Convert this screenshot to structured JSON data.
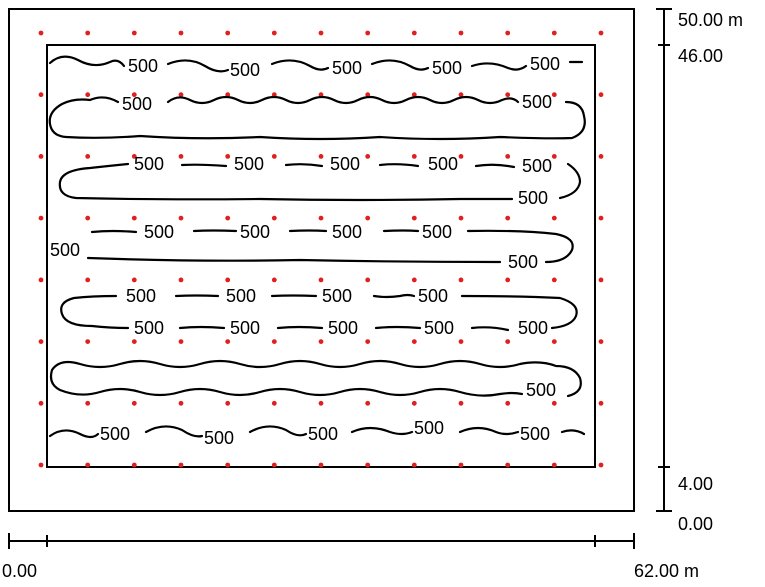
{
  "outer_boundary": {
    "width_m": 62,
    "height_m": 50
  },
  "room_boundary": {
    "x_range_m": [
      4,
      62
    ],
    "y_range_m": [
      4,
      46
    ]
  },
  "dimensions": {
    "horizontal": {
      "start_label": "0.00",
      "end_label": "62.00 m"
    },
    "vertical": {
      "top_label": "50.00 m",
      "upper_label": "46.00",
      "lower_label": "4.00",
      "bottom_label": "0.00"
    }
  },
  "grid_points": {
    "color": "#e02020",
    "columns": 13,
    "rows": 8
  },
  "contour": {
    "value": "500",
    "rows": [
      {
        "labels": [
          "500",
          "500",
          "500",
          "500",
          "500"
        ]
      },
      {
        "labels": [
          "500",
          "500"
        ]
      },
      {
        "labels": [
          "500",
          "500",
          "500",
          "500",
          "500"
        ]
      },
      {
        "labels": [
          "500"
        ]
      },
      {
        "labels": [
          "500",
          "500",
          "500",
          "500"
        ]
      },
      {
        "labels": [
          "500",
          "500"
        ]
      },
      {
        "labels": [
          "500",
          "500",
          "500",
          "500"
        ]
      },
      {
        "labels": [
          "500",
          "500",
          "500",
          "500",
          "500"
        ]
      },
      {
        "labels": [
          "500"
        ]
      },
      {
        "labels": [
          "500",
          "500",
          "500",
          "500",
          "500"
        ]
      }
    ]
  }
}
